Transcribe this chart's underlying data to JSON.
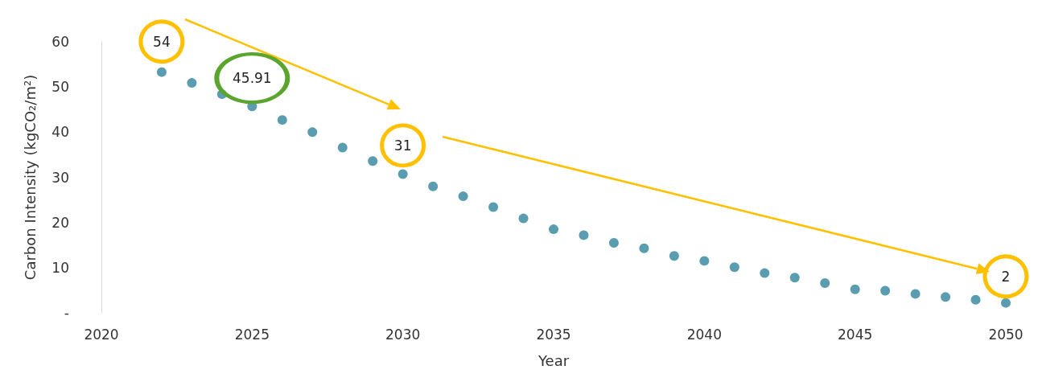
{
  "chart_data": {
    "type": "scatter",
    "xlabel": "Year",
    "ylabel": "Carbon Intensity (kgCO₂/m²)",
    "x": [
      2022,
      2023,
      2024,
      2025,
      2026,
      2027,
      2028,
      2029,
      2030,
      2031,
      2032,
      2033,
      2034,
      2035,
      2036,
      2037,
      2038,
      2039,
      2040,
      2041,
      2042,
      2043,
      2044,
      2045,
      2046,
      2047,
      2048,
      2049,
      2050
    ],
    "values": [
      53.3,
      50.9,
      48.4,
      45.7,
      42.7,
      40.0,
      36.6,
      33.6,
      30.7,
      28.0,
      25.8,
      23.4,
      20.9,
      18.5,
      17.2,
      15.5,
      14.3,
      12.6,
      11.5,
      10.1,
      8.8,
      7.8,
      6.6,
      5.2,
      4.9,
      4.2,
      3.5,
      2.9,
      2.2
    ],
    "color": "#31859c",
    "marker": "circle",
    "grid": false,
    "xlim": [
      2020,
      2050
    ],
    "xticks": [
      2020,
      2025,
      2030,
      2035,
      2040,
      2045,
      2050
    ],
    "ylim": [
      0,
      60
    ],
    "yticks": [
      {
        "value": 0,
        "label": "-"
      },
      10,
      20,
      30,
      40,
      50,
      60
    ],
    "annotations": [
      {
        "text": "54",
        "x": 2022,
        "y": 54
      },
      {
        "text": "45.91",
        "x": 2025,
        "y": 45.91
      },
      {
        "text": "31",
        "x": 2030,
        "y": 31
      },
      {
        "text": "2",
        "x": 2050,
        "y": 2
      }
    ]
  }
}
